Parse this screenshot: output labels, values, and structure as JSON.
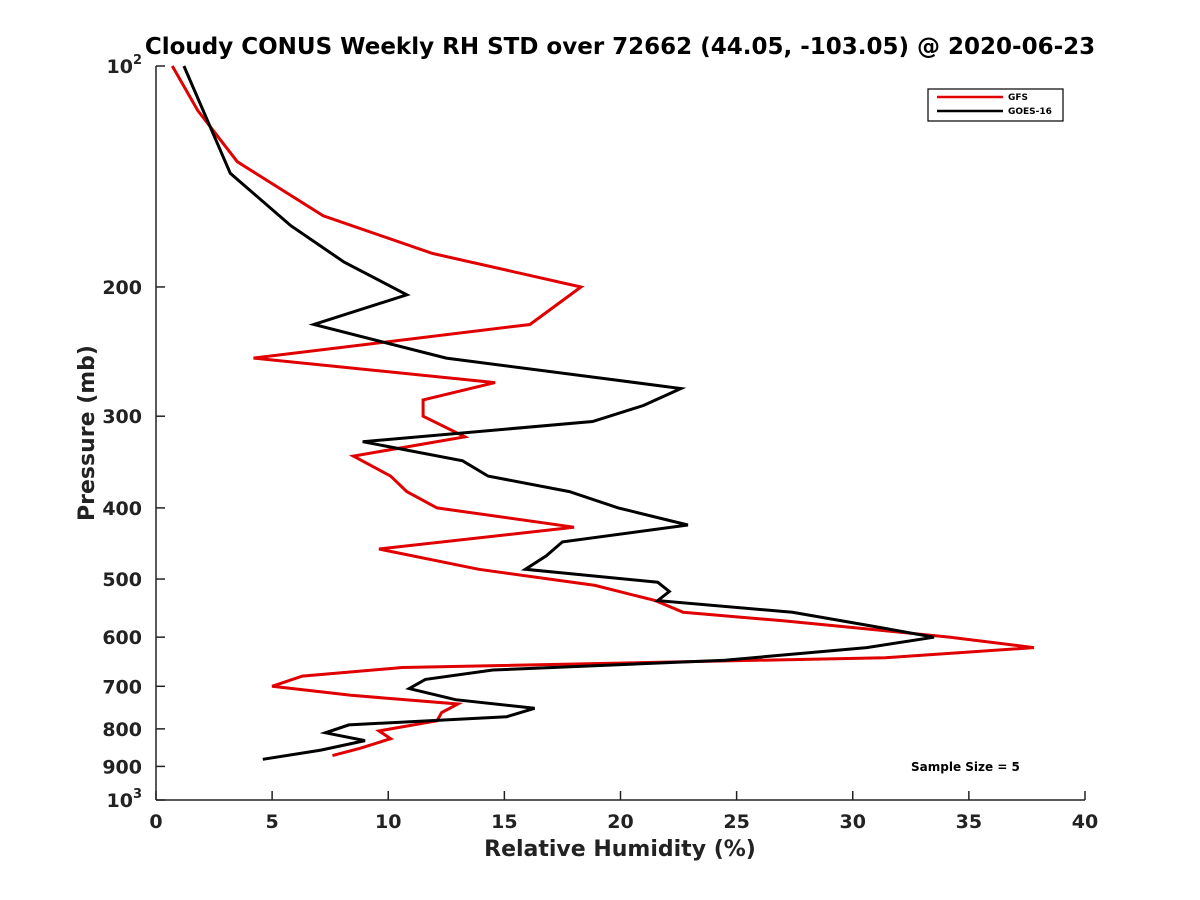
{
  "chart_data": {
    "type": "line",
    "title": "Cloudy CONUS Weekly RH STD over 72662 (44.05, -103.05) @ 2020-06-23",
    "xlabel": "Relative Humidity (%)",
    "ylabel": "Pressure (mb)",
    "xlim": [
      0,
      40
    ],
    "ylim": [
      100,
      1000
    ],
    "y_scale": "log",
    "y_reversed": true,
    "grid": false,
    "legend_position": "top-right",
    "x_ticks": [
      0,
      5,
      10,
      15,
      20,
      25,
      30,
      35,
      40
    ],
    "y_ticks": [
      {
        "value": 100,
        "base": "10",
        "exp": "2"
      },
      {
        "value": 200,
        "label": "200"
      },
      {
        "value": 300,
        "label": "300"
      },
      {
        "value": 400,
        "label": "400"
      },
      {
        "value": 500,
        "label": "500"
      },
      {
        "value": 600,
        "label": "600"
      },
      {
        "value": 700,
        "label": "700"
      },
      {
        "value": 800,
        "label": "800"
      },
      {
        "value": 900,
        "label": "900"
      },
      {
        "value": 1000,
        "base": "10",
        "exp": "3"
      }
    ],
    "series": [
      {
        "name": "GFS",
        "color": "#e00000",
        "points": [
          [
            0.7,
            100
          ],
          [
            1.8,
            115
          ],
          [
            3.5,
            135
          ],
          [
            7.2,
            160
          ],
          [
            11.9,
            180
          ],
          [
            18.3,
            200
          ],
          [
            16.1,
            225
          ],
          [
            4.2,
            250
          ],
          [
            14.6,
            270
          ],
          [
            11.5,
            285
          ],
          [
            11.5,
            300
          ],
          [
            13.3,
            320
          ],
          [
            8.5,
            340
          ],
          [
            10.1,
            362
          ],
          [
            10.8,
            380
          ],
          [
            12.1,
            400
          ],
          [
            18.0,
            425
          ],
          [
            9.6,
            455
          ],
          [
            13.9,
            485
          ],
          [
            18.9,
            510
          ],
          [
            21.5,
            535
          ],
          [
            22.7,
            555
          ],
          [
            27.0,
            570
          ],
          [
            30.7,
            585
          ],
          [
            34.2,
            600
          ],
          [
            37.8,
            620
          ],
          [
            31.4,
            640
          ],
          [
            10.6,
            660
          ],
          [
            6.3,
            678
          ],
          [
            5.0,
            700
          ],
          [
            8.4,
            720
          ],
          [
            13.0,
            740
          ],
          [
            12.3,
            760
          ],
          [
            12.1,
            780
          ],
          [
            9.6,
            805
          ],
          [
            10.1,
            825
          ],
          [
            8.8,
            850
          ],
          [
            7.6,
            870
          ]
        ]
      },
      {
        "name": "GOES-16",
        "color": "#000000",
        "points": [
          [
            1.2,
            100
          ],
          [
            3.2,
            140
          ],
          [
            5.8,
            165
          ],
          [
            8.1,
            185
          ],
          [
            10.8,
            205
          ],
          [
            6.8,
            225
          ],
          [
            12.5,
            250
          ],
          [
            22.6,
            275
          ],
          [
            21.0,
            290
          ],
          [
            18.8,
            305
          ],
          [
            8.9,
            325
          ],
          [
            13.2,
            345
          ],
          [
            14.3,
            362
          ],
          [
            17.8,
            380
          ],
          [
            19.9,
            400
          ],
          [
            22.9,
            422
          ],
          [
            17.5,
            445
          ],
          [
            16.8,
            465
          ],
          [
            15.9,
            485
          ],
          [
            21.6,
            505
          ],
          [
            22.1,
            520
          ],
          [
            21.6,
            535
          ],
          [
            27.4,
            555
          ],
          [
            30.9,
            580
          ],
          [
            33.5,
            600
          ],
          [
            30.6,
            620
          ],
          [
            24.5,
            645
          ],
          [
            14.5,
            665
          ],
          [
            11.6,
            685
          ],
          [
            10.9,
            705
          ],
          [
            12.9,
            730
          ],
          [
            16.3,
            750
          ],
          [
            15.1,
            770
          ],
          [
            8.3,
            790
          ],
          [
            7.3,
            810
          ],
          [
            9.0,
            830
          ],
          [
            7.1,
            855
          ],
          [
            4.6,
            880
          ]
        ]
      }
    ],
    "annotations": [
      "Sample Size = 5"
    ]
  }
}
